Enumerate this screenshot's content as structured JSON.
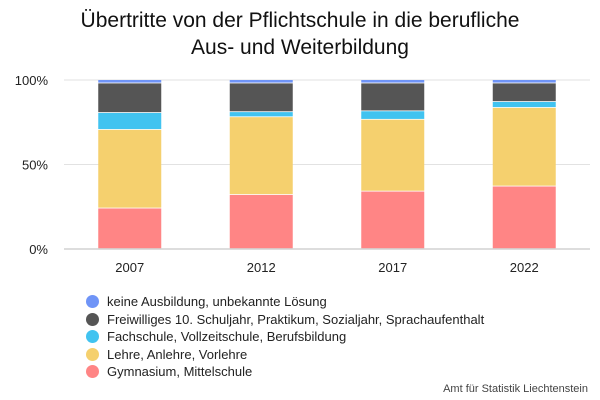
{
  "chart_data": {
    "type": "bar",
    "stacked": true,
    "normalized": true,
    "title_lines": [
      "Übertritte von der Pflichtschule in die berufliche",
      "Aus- und Weiterbildung"
    ],
    "categories": [
      "2007",
      "2012",
      "2017",
      "2022"
    ],
    "y_ticks": [
      "0%",
      "50%",
      "100%"
    ],
    "ylim": [
      0,
      100
    ],
    "grid": true,
    "legend_position": "bottom-left",
    "series": [
      {
        "name": "Gymnasium, Mittelschule",
        "color": "#ff8585",
        "values": [
          24,
          32,
          34,
          37
        ]
      },
      {
        "name": "Lehre, Anlehre, Vorlehre",
        "color": "#f5d06e",
        "values": [
          46.5,
          46,
          42.5,
          46.5
        ]
      },
      {
        "name": "Fachschule, Vollzeitschule, Berufsbildung",
        "color": "#41c3f0",
        "values": [
          10,
          3,
          5,
          3.5
        ]
      },
      {
        "name": "Freiwilliges 10. Schuljahr, Praktikum, Sozialjahr, Sprachaufenthalt",
        "color": "#555555",
        "values": [
          17.5,
          17,
          16.5,
          11
        ]
      },
      {
        "name": "keine Ausbildung, unbekannte Lösung",
        "color": "#6f94f7",
        "values": [
          2,
          2,
          2,
          2
        ]
      }
    ]
  },
  "source_label": "Amt für Statistik Liechtenstein"
}
